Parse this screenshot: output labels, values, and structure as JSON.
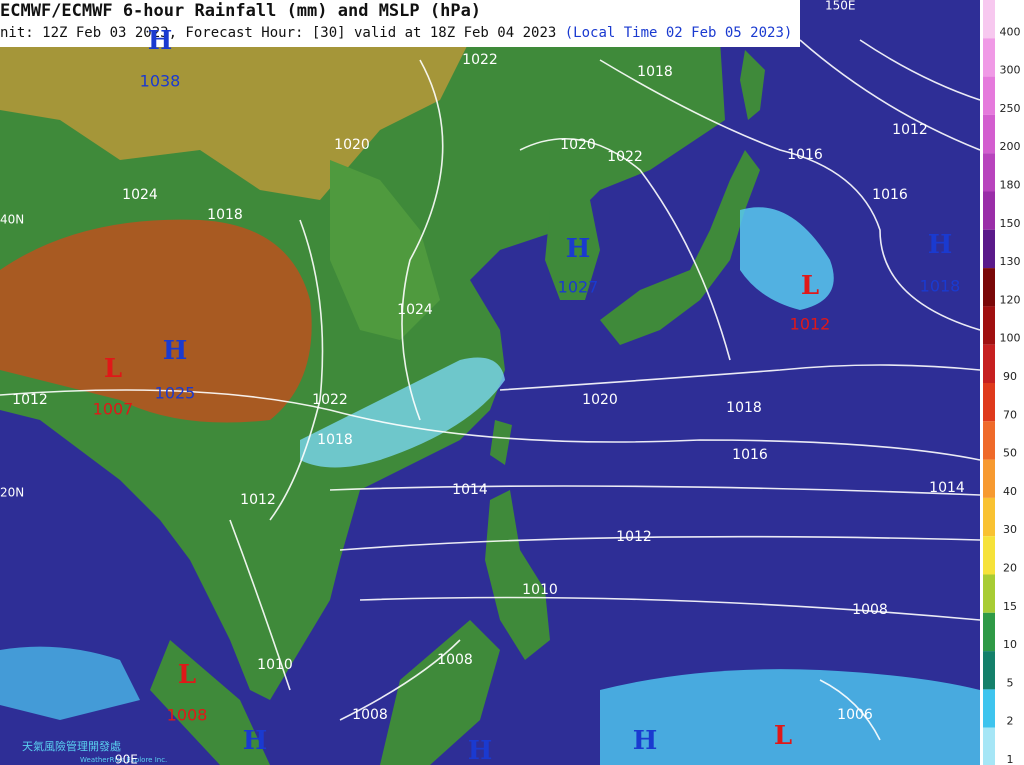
{
  "header": {
    "title": "ECMWF/ECMWF 6-hour Rainfall (mm) and MSLP (hPa)",
    "subtitle": "nit: 12Z Feb 03 2023, Forecast Hour: [30] valid at 18Z Feb 04 2023",
    "local_time": "(Local Time 02 Feb 05 2023)"
  },
  "centers": [
    {
      "type": "H",
      "value": "1038"
    },
    {
      "type": "H",
      "value": "1025"
    },
    {
      "type": "L",
      "value": "1007"
    },
    {
      "type": "H",
      "value": "1027"
    },
    {
      "type": "L",
      "value": "1012"
    },
    {
      "type": "H",
      "value": "1018"
    },
    {
      "type": "L",
      "value": "1008"
    },
    {
      "type": "H"
    },
    {
      "type": "H"
    },
    {
      "type": "H"
    },
    {
      "type": "L"
    }
  ],
  "isobar_labels": [
    "1022",
    "1018",
    "1020",
    "1020",
    "1022",
    "1016",
    "1012",
    "1016",
    "1024",
    "1018",
    "1020",
    "1016",
    "1014",
    "1014",
    "1012",
    "1008",
    "1012",
    "1022",
    "1018",
    "1010",
    "1008",
    "1008",
    "1006",
    "1010",
    "1012",
    "1024",
    "1018"
  ],
  "grid_labels": [
    "40N",
    "20N",
    "90E",
    "150E"
  ],
  "colorbar": {
    "labels": [
      "400",
      "300",
      "250",
      "200",
      "180",
      "150",
      "130",
      "120",
      "100",
      "90",
      "70",
      "50",
      "40",
      "30",
      "20",
      "15",
      "10",
      "5",
      "2",
      "1"
    ]
  },
  "watermark": {
    "name": "天氣風險管理開發處",
    "company": "WeatherRisk Explore Inc."
  }
}
